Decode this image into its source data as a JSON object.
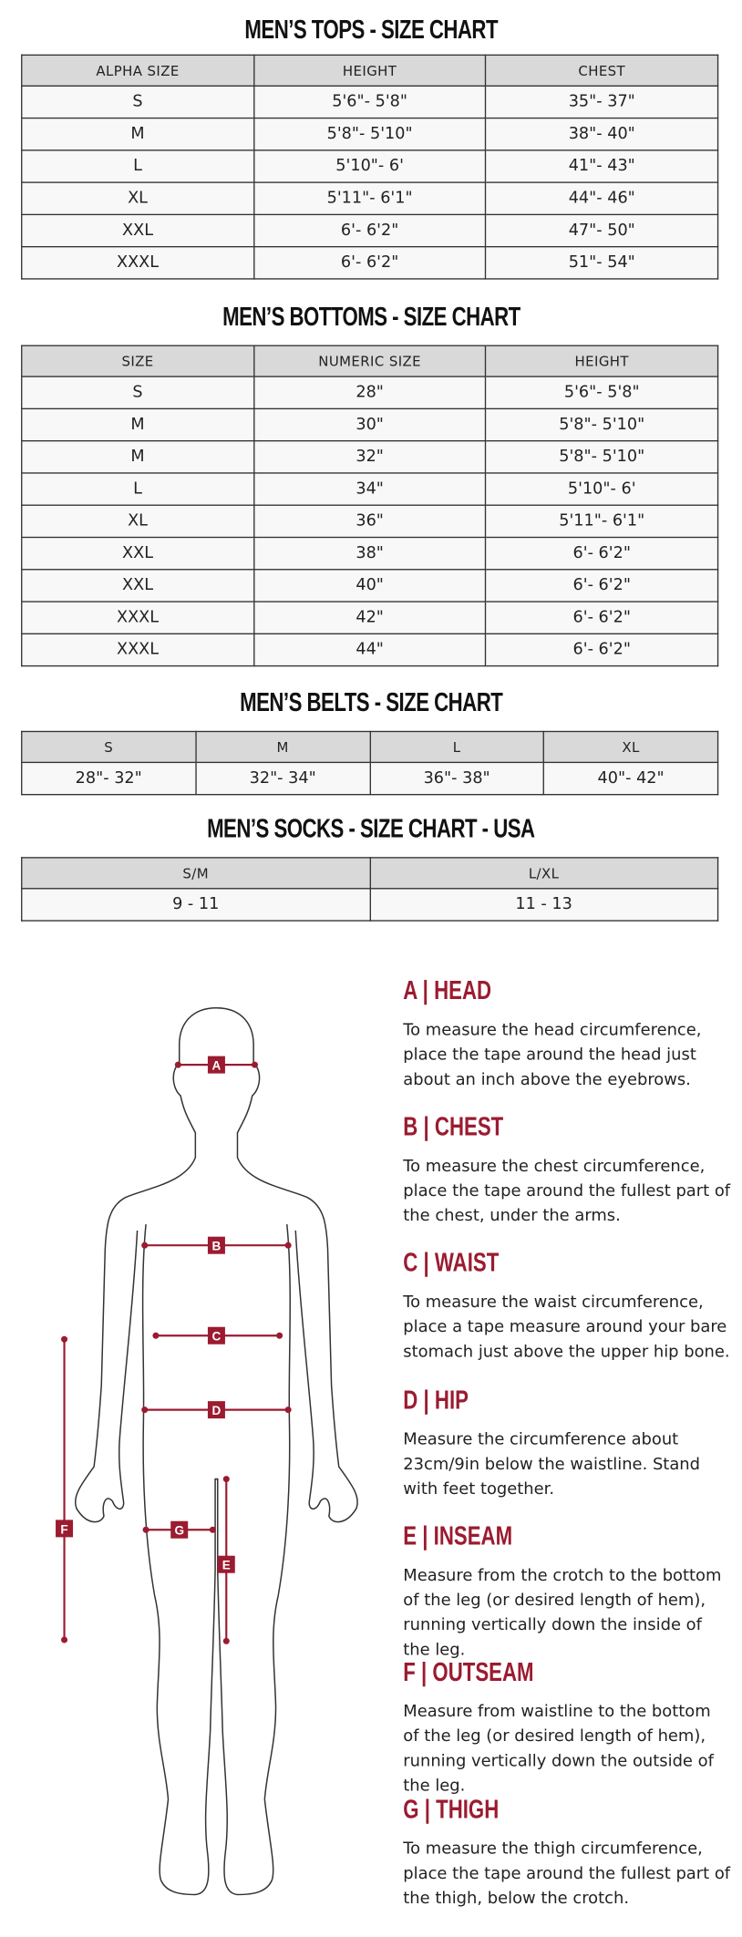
{
  "accent_color": "#9b1b30",
  "tables": [
    {
      "title": "MEN’S TOPS - SIZE CHART",
      "headers": [
        "ALPHA SIZE",
        "HEIGHT",
        "CHEST"
      ],
      "rows": [
        [
          "S",
          "5'6\"- 5'8\"",
          "35\"- 37\""
        ],
        [
          "M",
          "5'8\"- 5'10\"",
          "38\"- 40\""
        ],
        [
          "L",
          "5'10\"- 6'",
          "41\"- 43\""
        ],
        [
          "XL",
          "5'11\"- 6'1\"",
          "44\"- 46\""
        ],
        [
          "XXL",
          "6'- 6'2\"",
          "47\"- 50\""
        ],
        [
          "XXXL",
          "6'- 6'2\"",
          "51\"- 54\""
        ]
      ]
    },
    {
      "title": "MEN’S BOTTOMS - SIZE CHART",
      "headers": [
        "SIZE",
        "NUMERIC SIZE",
        "HEIGHT"
      ],
      "rows": [
        [
          "S",
          "28\"",
          "5'6\"- 5'8\""
        ],
        [
          "M",
          "30\"",
          "5'8\"- 5'10\""
        ],
        [
          "M",
          "32\"",
          "5'8\"- 5'10\""
        ],
        [
          "L",
          "34\"",
          "5'10\"- 6'"
        ],
        [
          "XL",
          "36\"",
          "5'11\"- 6'1\""
        ],
        [
          "XXL",
          "38\"",
          "6'- 6'2\""
        ],
        [
          "XXL",
          "40\"",
          "6'- 6'2\""
        ],
        [
          "XXXL",
          "42\"",
          "6'- 6'2\""
        ],
        [
          "XXXL",
          "44\"",
          "6'- 6'2\""
        ]
      ]
    },
    {
      "title": "MEN’S BELTS - SIZE CHART",
      "headers": [
        "S",
        "M",
        "L",
        "XL"
      ],
      "rows": [
        [
          "28\"- 32\"",
          "32\"- 34\"",
          "36\"- 38\"",
          "40\"- 42\""
        ]
      ]
    },
    {
      "title": "MEN’S SOCKS - SIZE CHART - USA",
      "headers": [
        "S/M",
        "L/XL"
      ],
      "rows": [
        [
          "9 - 11",
          "11 - 13"
        ]
      ]
    }
  ],
  "figure": {
    "labels": [
      "A",
      "B",
      "C",
      "D",
      "E",
      "F",
      "G"
    ]
  },
  "measurements": [
    {
      "heading": "A | HEAD",
      "text": "To measure the head circumference, place the tape around the head just about an inch above the eyebrows."
    },
    {
      "heading": "B | CHEST",
      "text": "To measure the chest circumference, place the tape around the fullest part of the chest, under the arms."
    },
    {
      "heading": "C | WAIST",
      "text": "To measure the waist circumference, place a tape measure around your bare stomach just above the upper hip bone."
    },
    {
      "heading": "D | HIP",
      "text": "Measure the circumference about 23cm/9in below the waistline. Stand with feet together."
    },
    {
      "heading": "E | INSEAM",
      "text": "Measure from the crotch to the bottom of the leg (or desired length of hem), running vertically down the inside of the leg."
    },
    {
      "heading": "F | OUTSEAM",
      "text": "Measure from waistline to the bottom of the leg (or desired length of hem), running vertically down the outside of the leg."
    },
    {
      "heading": "G | THIGH",
      "text": "To measure the thigh circumference, place the tape around the fullest part of the thigh, below the crotch."
    }
  ]
}
